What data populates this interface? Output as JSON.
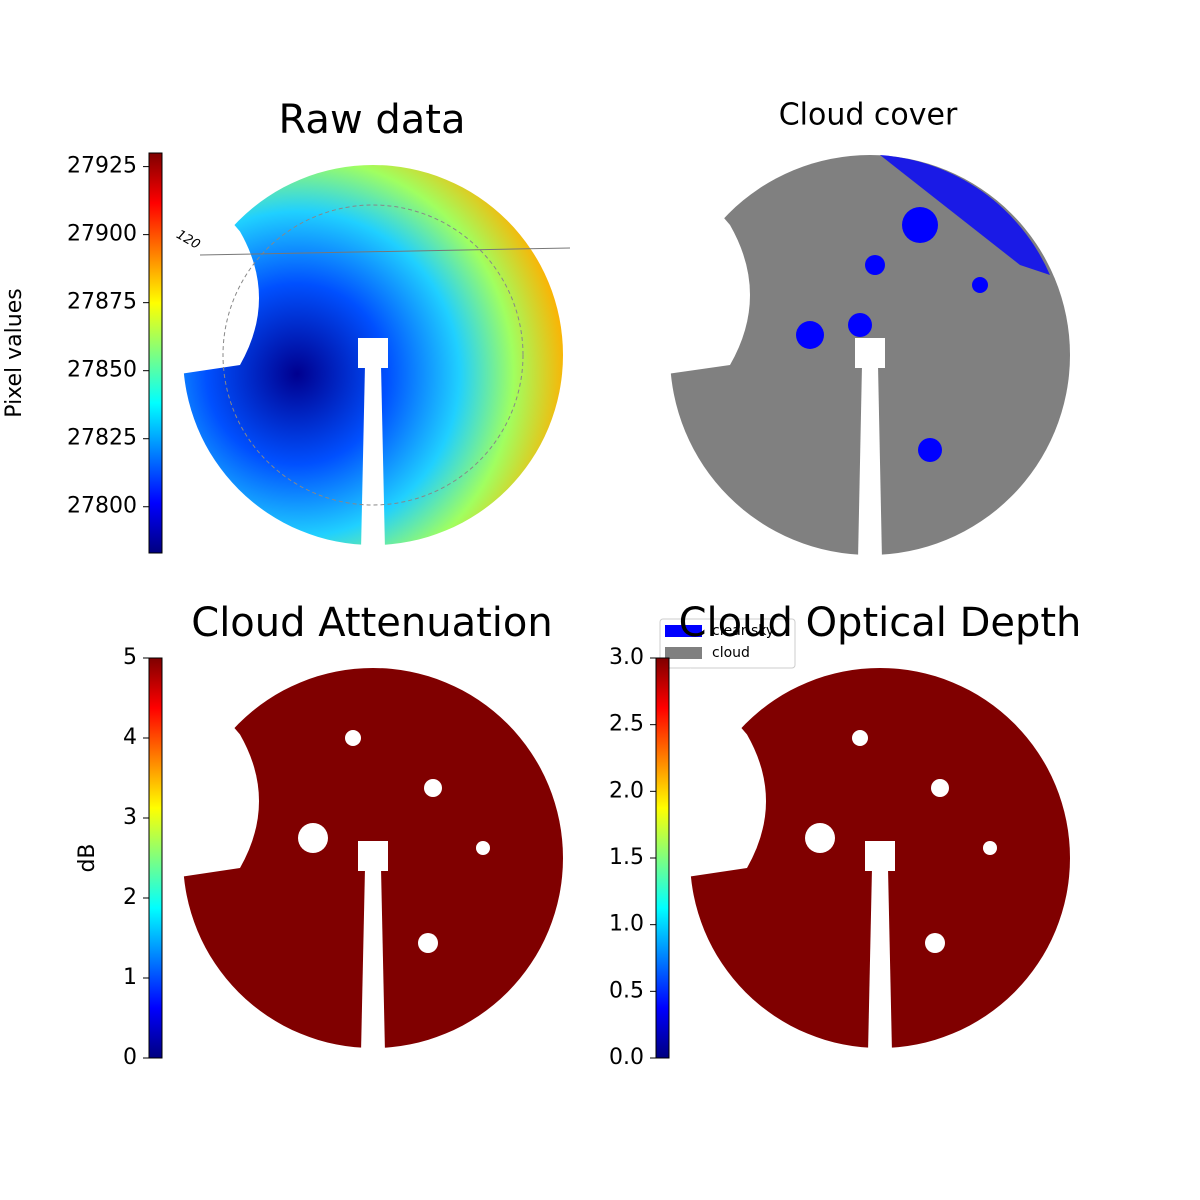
{
  "chart_data": [
    {
      "type": "image",
      "title": "Raw data",
      "annotation": "120",
      "colormap": "jet",
      "colorbar": {
        "label": "Pixel values",
        "ylim": [
          27783,
          27930
        ],
        "yticks": [
          27800,
          27825,
          27850,
          27875,
          27900,
          27925
        ]
      }
    },
    {
      "type": "image",
      "title": "Cloud cover",
      "color": "#808080",
      "legend": [
        {
          "name": "clear sky",
          "color": "#0000ff"
        },
        {
          "name": "cloud",
          "color": "#808080"
        }
      ]
    },
    {
      "type": "image",
      "title": "Cloud Attenuation",
      "color": "#800000",
      "colormap": "jet",
      "colorbar": {
        "label": "dB",
        "ylim": [
          0,
          5
        ],
        "yticks": [
          0,
          1,
          2,
          3,
          4,
          5
        ]
      }
    },
    {
      "type": "image",
      "title": "Cloud Optical Depth",
      "color": "#800000",
      "colormap": "jet",
      "colorbar": {
        "ylim": [
          0,
          3
        ],
        "yticks": [
          {
            "value": 0,
            "label": "0.0"
          },
          {
            "value": 0.5,
            "label": "0.5"
          },
          {
            "value": 1,
            "label": "1.0"
          },
          {
            "value": 1.5,
            "label": "1.5"
          },
          {
            "value": 2,
            "label": "2.0"
          },
          {
            "value": 2.5,
            "label": "2.5"
          },
          {
            "value": 3,
            "label": "3.0"
          }
        ]
      }
    }
  ]
}
